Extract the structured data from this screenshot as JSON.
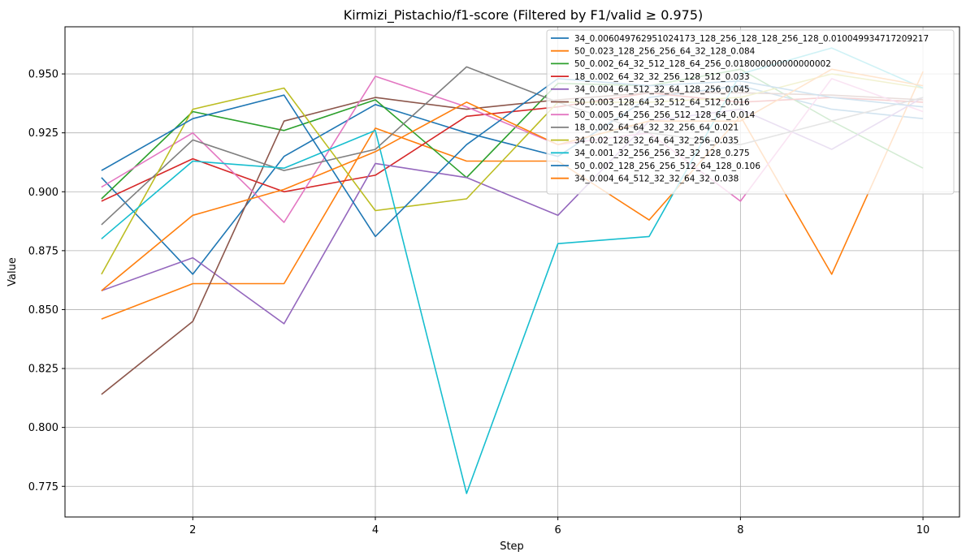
{
  "chart_data": {
    "type": "line",
    "title": "Kirmizi_Pistachio/f1-score (Filtered by F1/valid ≥ 0.975)",
    "xlabel": "Step",
    "ylabel": "Value",
    "xlim": [
      0.6,
      10.4
    ],
    "ylim": [
      0.762,
      0.97
    ],
    "xticks": [
      2,
      4,
      6,
      8,
      10
    ],
    "yticks": [
      0.775,
      0.8,
      0.825,
      0.85,
      0.875,
      0.9,
      0.925,
      0.95
    ],
    "ytick_labels": [
      "0.775",
      "0.800",
      "0.825",
      "0.850",
      "0.875",
      "0.900",
      "0.925",
      "0.950"
    ],
    "grid": true,
    "legend_position": "top-right",
    "x": [
      1,
      2,
      3,
      4,
      5,
      6,
      7,
      8,
      9,
      10
    ],
    "series": [
      {
        "name": "34_0.006049762951024173_128_256_128_128_256_128_0.010049934717209217",
        "color": "#1f77b4",
        "values": [
          0.906,
          0.865,
          0.915,
          0.937,
          0.925,
          0.915,
          0.94,
          0.945,
          0.935,
          0.931
        ]
      },
      {
        "name": "50_0.023_128_256_256_64_32_128_0.084",
        "color": "#ff7f0e",
        "values": [
          0.846,
          0.861,
          0.861,
          0.927,
          0.913,
          0.913,
          0.888,
          0.932,
          0.865,
          0.951
        ]
      },
      {
        "name": "50_0.002_64_32_512_128_64_256_0.018000000000000002",
        "color": "#2ca02c",
        "values": [
          0.897,
          0.934,
          0.926,
          0.939,
          0.906,
          0.946,
          0.945,
          0.952,
          0.93,
          0.91
        ]
      },
      {
        "name": "18_0.002_64_32_32_256_128_512_0.033",
        "color": "#d62728",
        "values": [
          0.896,
          0.914,
          0.9,
          0.907,
          0.932,
          0.936,
          0.942,
          0.938,
          0.94,
          0.938
        ]
      },
      {
        "name": "34_0.004_64_512_32_64_128_256_0.045",
        "color": "#9467bd",
        "values": [
          0.858,
          0.872,
          0.844,
          0.912,
          0.906,
          0.89,
          0.93,
          0.935,
          0.918,
          0.94
        ]
      },
      {
        "name": "50_0.003_128_64_32_512_64_512_0.016",
        "color": "#8c564b",
        "values": [
          0.814,
          0.845,
          0.93,
          0.94,
          0.935,
          0.939,
          0.942,
          0.942,
          0.941,
          0.939
        ]
      },
      {
        "name": "50_0.005_64_256_256_512_128_64_0.014",
        "color": "#e377c2",
        "values": [
          0.902,
          0.925,
          0.887,
          0.949,
          0.936,
          0.92,
          0.925,
          0.896,
          0.948,
          0.934
        ]
      },
      {
        "name": "18_0.002_64_64_32_32_256_64_0.021",
        "color": "#7f7f7f",
        "values": [
          0.886,
          0.922,
          0.909,
          0.918,
          0.953,
          0.938,
          0.925,
          0.92,
          0.93,
          0.94
        ]
      },
      {
        "name": "34_0.02_128_32_64_64_32_256_0.035",
        "color": "#bcbd22",
        "values": [
          0.865,
          0.935,
          0.944,
          0.892,
          0.897,
          0.938,
          0.938,
          0.94,
          0.95,
          0.944
        ]
      },
      {
        "name": "34_0.001_32_256_256_32_32_128_0.275",
        "color": "#17becf",
        "values": [
          0.88,
          0.913,
          0.91,
          0.926,
          0.772,
          0.878,
          0.881,
          0.95,
          0.961,
          0.944
        ]
      },
      {
        "name": "50_0.002_128_256_256_512_64_128_0.106",
        "color": "#1f77b4",
        "values": [
          0.909,
          0.931,
          0.941,
          0.881,
          0.92,
          0.948,
          0.945,
          0.947,
          0.94,
          0.936
        ]
      },
      {
        "name": "34_0.004_64_512_32_32_64_32_0.038",
        "color": "#ff7f0e",
        "values": [
          0.858,
          0.89,
          0.901,
          0.917,
          0.938,
          0.92,
          0.93,
          0.93,
          0.952,
          0.945
        ]
      }
    ]
  }
}
